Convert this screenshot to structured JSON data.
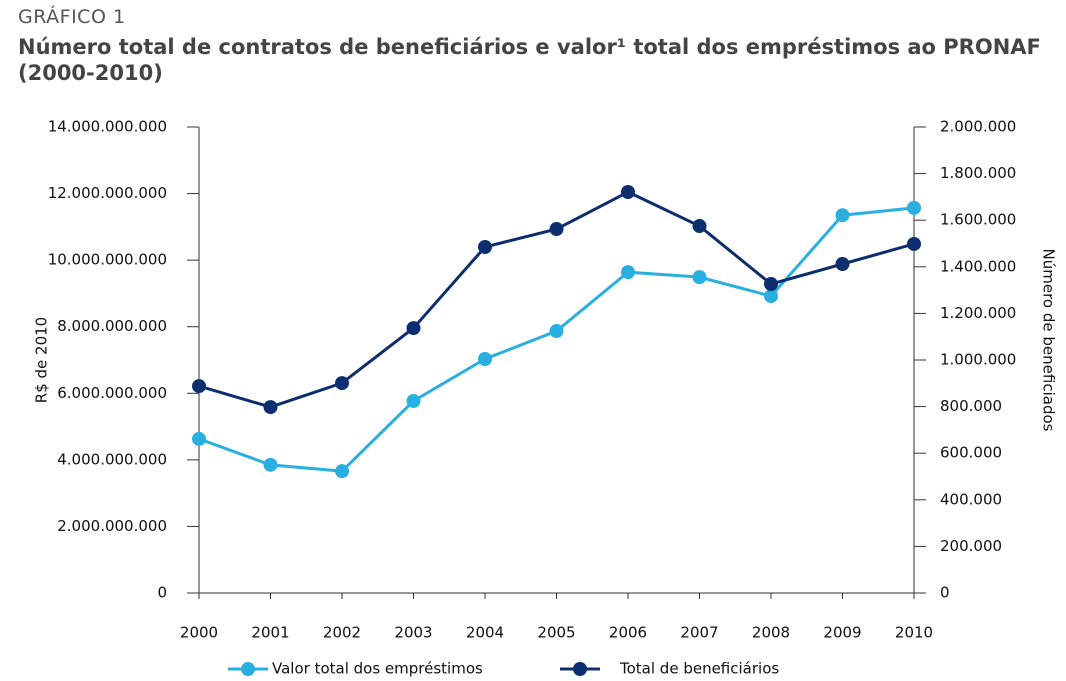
{
  "chart_data": {
    "type": "line",
    "supertitle": "GRÁFICO 1",
    "title": "Número total de contratos de beneficiários e valor¹ total dos empréstimos ao PRONAF (2000-2010)",
    "ylabel": "R$ de 2010",
    "y2label": "Número de beneficiados",
    "categories": [
      "2000",
      "2001",
      "2002",
      "2003",
      "2004",
      "2005",
      "2006",
      "2007",
      "2008",
      "2009",
      "2010"
    ],
    "series": [
      {
        "name": "Valor total dos empréstimos",
        "color": "#29b0e0",
        "values": [
          4630000000,
          3850000000,
          3660000000,
          5770000000,
          7030000000,
          7870000000,
          9640000000,
          9490000000,
          8920000000,
          11350000000,
          11570000000
        ]
      },
      {
        "name": "Total de beneficiários",
        "color": "#0d2e6e",
        "axis": "y2",
        "values": [
          888000,
          798000,
          901000,
          1137000,
          1485000,
          1562000,
          1721000,
          1575000,
          1326000,
          1412000,
          1498000
        ]
      }
    ],
    "ylim": [
      0,
      14000000000
    ],
    "yticks": [
      0,
      {
        "value": 2000000000,
        "label": "2.000.000.000"
      },
      {
        "value": 4000000000,
        "label": "4.000.000.000"
      },
      {
        "value": 6000000000,
        "label": "6.000.000.000"
      },
      {
        "value": 8000000000,
        "label": "8.000.000.000"
      },
      {
        "value": 10000000000,
        "label": "10.000.000.000"
      },
      {
        "value": 12000000000,
        "label": "12.000.000.000"
      },
      {
        "value": 14000000000,
        "label": "14.000.000.000"
      }
    ],
    "y2lim": [
      0,
      2000000
    ],
    "y2ticks": [
      0,
      {
        "value": 200000,
        "label": "200.000"
      },
      {
        "value": 400000,
        "label": "400.000"
      },
      {
        "value": 600000,
        "label": "600.000"
      },
      {
        "value": 800000,
        "label": "800.000"
      },
      {
        "value": 1000000,
        "label": "1.000.000"
      },
      {
        "value": 1200000,
        "label": "1.200.000"
      },
      {
        "value": 1400000,
        "label": "1.400.000"
      },
      {
        "value": 1600000,
        "label": "1.600.000"
      },
      {
        "value": 1800000,
        "label": "1.800.000"
      },
      {
        "value": 2000000,
        "label": "2.000.000"
      }
    ],
    "grid": false,
    "legend": "bottom"
  }
}
